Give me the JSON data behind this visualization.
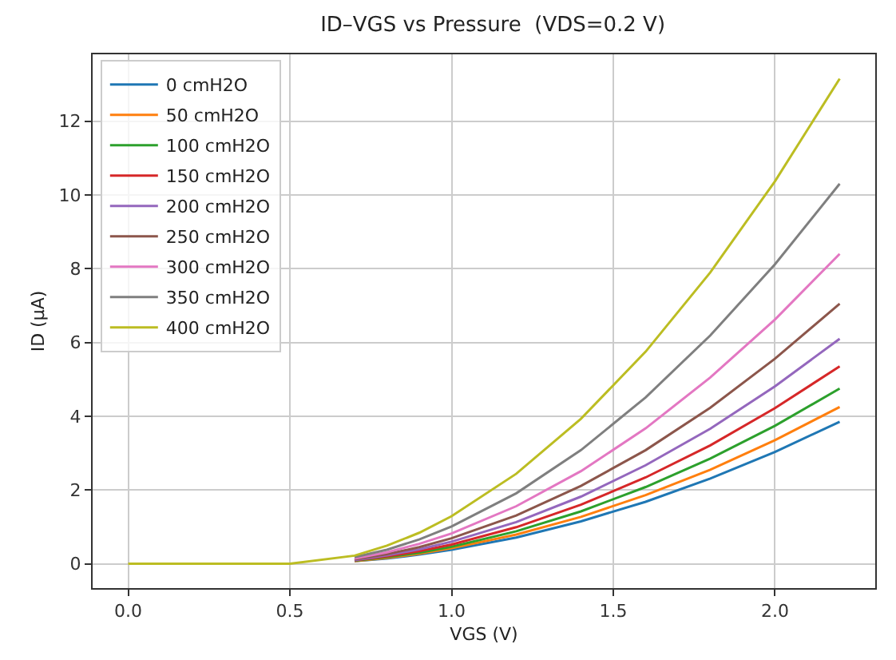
{
  "chart_data": {
    "type": "line",
    "title": "ID–VGS vs Pressure  (VDS=0.2 V)",
    "xlabel": "VGS (V)",
    "ylabel": "ID (µA)",
    "x": [
      0,
      0.5,
      0.7,
      0.8,
      0.9,
      1.0,
      1.2,
      1.4,
      1.6,
      1.8,
      2.0,
      2.2
    ],
    "series": [
      {
        "name": "0 cmH2O",
        "color": "#1f77b4",
        "values": [
          null,
          null,
          0.07,
          0.14,
          0.25,
          0.38,
          0.71,
          1.15,
          1.68,
          2.31,
          3.03,
          3.85
        ]
      },
      {
        "name": "50 cmH2O",
        "color": "#ff7f0e",
        "values": [
          null,
          null,
          0.07,
          0.16,
          0.27,
          0.42,
          0.79,
          1.27,
          1.86,
          2.55,
          3.35,
          4.25
        ]
      },
      {
        "name": "100 cmH2O",
        "color": "#2ca02c",
        "values": [
          null,
          null,
          0.08,
          0.18,
          0.3,
          0.46,
          0.88,
          1.42,
          2.08,
          2.85,
          3.74,
          4.75
        ]
      },
      {
        "name": "150 cmH2O",
        "color": "#d62728",
        "values": [
          null,
          null,
          0.09,
          0.2,
          0.34,
          0.52,
          0.99,
          1.6,
          2.34,
          3.21,
          4.22,
          5.35
        ]
      },
      {
        "name": "200 cmH2O",
        "color": "#9467bd",
        "values": [
          null,
          null,
          0.1,
          0.23,
          0.39,
          0.6,
          1.13,
          1.82,
          2.67,
          3.66,
          4.81,
          6.1
        ]
      },
      {
        "name": "250 cmH2O",
        "color": "#8c564b",
        "values": [
          null,
          null,
          0.12,
          0.26,
          0.45,
          0.69,
          1.31,
          2.11,
          3.08,
          4.23,
          5.56,
          7.05
        ]
      },
      {
        "name": "300 cmH2O",
        "color": "#e377c2",
        "values": [
          null,
          null,
          0.14,
          0.31,
          0.54,
          0.82,
          1.56,
          2.51,
          3.67,
          5.05,
          6.62,
          8.4
        ]
      },
      {
        "name": "350 cmH2O",
        "color": "#7f7f7f",
        "values": [
          null,
          null,
          0.18,
          0.38,
          0.66,
          1.01,
          1.91,
          3.08,
          4.51,
          6.19,
          8.12,
          10.3
        ]
      },
      {
        "name": "400 cmH2O",
        "color": "#bcbd22",
        "values": [
          0,
          0,
          0.22,
          0.49,
          0.84,
          1.29,
          2.44,
          3.93,
          5.75,
          7.9,
          10.37,
          13.15
        ]
      }
    ],
    "xlim": [
      -0.11,
      2.31
    ],
    "ylim": [
      -0.66,
      13.81
    ],
    "xticks": [
      {
        "value": 0,
        "label": "0.0"
      },
      0.5,
      {
        "value": 1,
        "label": "1.0"
      },
      1.5,
      {
        "value": 2,
        "label": "2.0"
      }
    ],
    "yticks": [
      0,
      2,
      4,
      6,
      8,
      10,
      12
    ],
    "grid": true,
    "legend": "top left",
    "marker": "none",
    "line_style": "solid"
  }
}
